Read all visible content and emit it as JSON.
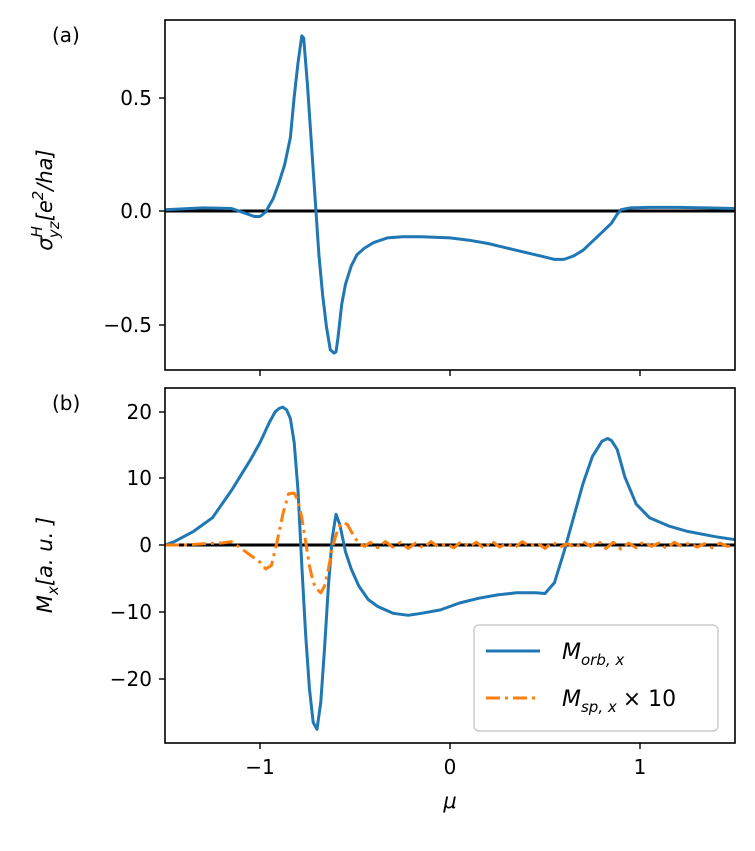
{
  "chart_data": [
    {
      "panel_label": "(a)",
      "type": "line",
      "ylabel": {
        "base": "σ",
        "sup": "H",
        "sub": "yz",
        "rest": "[e",
        "rest_sup": "2",
        "rest_end": "/ha]"
      },
      "xlim": [
        -1.5,
        1.5
      ],
      "ylim": [
        -0.71,
        0.84
      ],
      "xticks": [
        -1,
        0,
        1
      ],
      "xtick_labels_visible": false,
      "yticks": [
        0.5,
        0.0,
        -0.5
      ],
      "ytick_labels": [
        "0.5",
        "0.0",
        "−0.5"
      ],
      "zero_line": true,
      "colors": {
        "series": "#1f77b4",
        "zero_line": "#000000"
      },
      "series": [
        {
          "name": "sigma_yz_H",
          "x": [
            -1.5,
            -1.3,
            -1.15,
            -1.08,
            -1.03,
            -1.0,
            -0.97,
            -0.93,
            -0.9,
            -0.87,
            -0.84,
            -0.82,
            -0.8,
            -0.78,
            -0.77,
            -0.75,
            -0.73,
            -0.71,
            -0.69,
            -0.67,
            -0.65,
            -0.63,
            -0.61,
            -0.6,
            -0.59,
            -0.57,
            -0.55,
            -0.52,
            -0.49,
            -0.45,
            -0.4,
            -0.33,
            -0.25,
            -0.15,
            0.0,
            0.1,
            0.2,
            0.3,
            0.4,
            0.5,
            0.55,
            0.6,
            0.65,
            0.7,
            0.75,
            0.8,
            0.85,
            0.88,
            0.9,
            0.95,
            1.05,
            1.2,
            1.35,
            1.5
          ],
          "y": [
            0.0,
            0.008,
            0.005,
            -0.015,
            -0.03,
            -0.03,
            -0.01,
            0.05,
            0.12,
            0.2,
            0.32,
            0.5,
            0.65,
            0.77,
            0.76,
            0.55,
            0.3,
            0.05,
            -0.2,
            -0.38,
            -0.52,
            -0.62,
            -0.635,
            -0.63,
            -0.57,
            -0.42,
            -0.33,
            -0.25,
            -0.2,
            -0.17,
            -0.145,
            -0.125,
            -0.12,
            -0.12,
            -0.125,
            -0.135,
            -0.15,
            -0.17,
            -0.19,
            -0.21,
            -0.22,
            -0.22,
            -0.205,
            -0.18,
            -0.14,
            -0.1,
            -0.06,
            -0.02,
            0.0,
            0.008,
            0.01,
            0.01,
            0.008,
            0.005
          ]
        }
      ]
    },
    {
      "panel_label": "(b)",
      "type": "line",
      "ylabel": {
        "base": "M",
        "sub": "x",
        "rest": "[a. u. ]"
      },
      "xlabel": "μ",
      "xlim": [
        -1.5,
        1.5
      ],
      "ylim": [
        -29,
        23
      ],
      "xticks": [
        -1,
        0,
        1
      ],
      "xtick_labels": [
        "−1",
        "0",
        "1"
      ],
      "yticks": [
        20,
        10,
        0,
        -10,
        -20
      ],
      "ytick_labels": [
        "20",
        "10",
        "0",
        "−10",
        "−20"
      ],
      "zero_line": true,
      "colors": {
        "orb": "#1f77b4",
        "sp": "#ff7f0e",
        "zero_line": "#000000"
      },
      "legend": {
        "placement": "bottom-right",
        "entries": [
          {
            "series": "orb",
            "base": "M",
            "sub": "orb, x",
            "suffix": ""
          },
          {
            "series": "sp",
            "base": "M",
            "sub": "sp, x",
            "suffix": "× 10"
          }
        ]
      },
      "series": [
        {
          "name": "orb",
          "style": "solid",
          "x": [
            -1.5,
            -1.45,
            -1.35,
            -1.25,
            -1.15,
            -1.05,
            -1.0,
            -0.95,
            -0.92,
            -0.9,
            -0.88,
            -0.86,
            -0.84,
            -0.82,
            -0.8,
            -0.78,
            -0.76,
            -0.74,
            -0.72,
            -0.7,
            -0.68,
            -0.66,
            -0.64,
            -0.62,
            -0.6,
            -0.58,
            -0.55,
            -0.52,
            -0.48,
            -0.43,
            -0.38,
            -0.3,
            -0.22,
            -0.15,
            -0.05,
            0.05,
            0.15,
            0.25,
            0.35,
            0.45,
            0.5,
            0.55,
            0.6,
            0.65,
            0.7,
            0.75,
            0.8,
            0.83,
            0.85,
            0.88,
            0.92,
            0.98,
            1.05,
            1.15,
            1.25,
            1.4,
            1.5
          ],
          "y": [
            0.0,
            0.5,
            2.0,
            4.0,
            8.0,
            12.5,
            15.0,
            18.0,
            19.5,
            20.0,
            20.2,
            19.8,
            18.5,
            15.0,
            8.0,
            -3.0,
            -13.0,
            -21.0,
            -26.0,
            -27.0,
            -23.0,
            -15.0,
            -6.0,
            1.0,
            4.5,
            3.0,
            -1.0,
            -3.5,
            -6.0,
            -8.0,
            -9.0,
            -10.0,
            -10.3,
            -10.0,
            -9.5,
            -8.5,
            -7.8,
            -7.3,
            -7.0,
            -7.0,
            -7.1,
            -5.5,
            -1.0,
            4.0,
            9.0,
            13.0,
            15.2,
            15.6,
            15.3,
            14.0,
            10.0,
            6.0,
            4.0,
            2.8,
            2.0,
            1.2,
            0.8
          ]
        },
        {
          "name": "sp",
          "style": "dash-dot",
          "x": [
            -1.5,
            -1.4,
            -1.3,
            -1.2,
            -1.15,
            -1.1,
            -1.05,
            -1.0,
            -0.97,
            -0.94,
            -0.91,
            -0.88,
            -0.85,
            -0.82,
            -0.8,
            -0.78,
            -0.76,
            -0.74,
            -0.72,
            -0.7,
            -0.68,
            -0.66,
            -0.64,
            -0.62,
            -0.6,
            -0.58,
            -0.56,
            -0.54,
            -0.52,
            -0.5,
            -0.48,
            -0.45,
            -0.42,
            -0.38,
            -0.34,
            -0.3,
            -0.26,
            -0.22,
            -0.18,
            -0.14,
            -0.1,
            -0.06,
            -0.02,
            0.02,
            0.06,
            0.1,
            0.14,
            0.18,
            0.22,
            0.26,
            0.3,
            0.34,
            0.38,
            0.42,
            0.46,
            0.5,
            0.54,
            0.58,
            0.62,
            0.66,
            0.7,
            0.74,
            0.78,
            0.82,
            0.86,
            0.9,
            0.94,
            0.98,
            1.02,
            1.06,
            1.1,
            1.14,
            1.18,
            1.22,
            1.26,
            1.3,
            1.34,
            1.38,
            1.42,
            1.46,
            1.5
          ],
          "y": [
            0.0,
            0.0,
            0.2,
            0.3,
            0.5,
            -0.5,
            -1.5,
            -2.5,
            -3.5,
            -3.0,
            0.5,
            4.5,
            7.5,
            7.6,
            6.5,
            4.0,
            0.5,
            -3.0,
            -5.5,
            -6.5,
            -7.0,
            -6.0,
            -3.5,
            -0.5,
            1.5,
            2.8,
            3.3,
            3.0,
            2.0,
            1.0,
            0.3,
            -0.2,
            0.4,
            -0.4,
            0.5,
            -0.3,
            0.4,
            -0.5,
            0.3,
            -0.4,
            0.5,
            -0.3,
            0.2,
            -0.4,
            0.5,
            -0.2,
            0.4,
            -0.5,
            0.6,
            -0.3,
            0.2,
            -0.4,
            0.5,
            -0.2,
            0.3,
            -0.5,
            0.4,
            -0.3,
            0.2,
            -0.4,
            0.5,
            -0.2,
            0.6,
            -0.5,
            0.4,
            -0.6,
            0.3,
            -0.4,
            0.5,
            -0.2,
            0.3,
            -0.5,
            0.4,
            -0.2,
            0.3,
            -0.3,
            0.2,
            -0.4,
            0.3,
            -0.2,
            0.0
          ]
        }
      ]
    }
  ]
}
